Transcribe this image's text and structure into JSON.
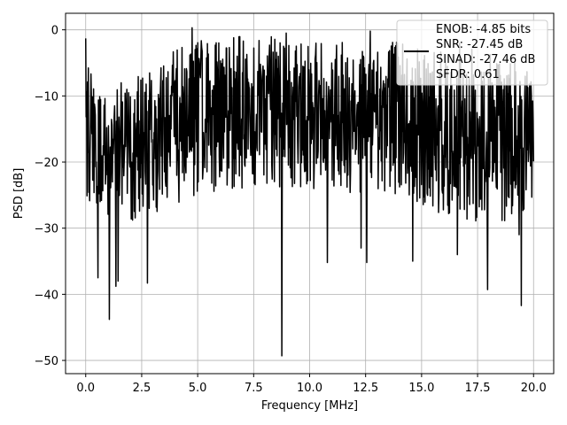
{
  "chart_data": {
    "type": "line",
    "title": "",
    "xlabel": "Frequency [MHz]",
    "ylabel": "PSD [dB]",
    "xlim": [
      -0.9,
      20.9
    ],
    "ylim": [
      -52,
      2.5
    ],
    "xticks": [
      0,
      2.5,
      5,
      7.5,
      10,
      12.5,
      15,
      17.5,
      20
    ],
    "xtick_labels": [
      "0.0",
      "2.5",
      "5.0",
      "7.5",
      "10.0",
      "12.5",
      "15.0",
      "17.5",
      "20.0"
    ],
    "yticks": [
      0,
      -10,
      -20,
      -30,
      -40,
      -50
    ],
    "ytick_labels": [
      "0",
      "−10",
      "−20",
      "−30",
      "−40",
      "−50"
    ],
    "grid": true,
    "legend_position": "top-right",
    "series_color": "#000000",
    "legend": {
      "lines": [
        "ENOB: -4.85 bits",
        "SNR: -27.45 dB",
        "SINAD: -27.46 dB",
        "SFDR: 0.61"
      ]
    },
    "series": [
      {
        "x_start": 0.0,
        "x_end": 20.0,
        "n_points": 1024,
        "envelope_upper": [
          [
            0.0,
            -1.5
          ],
          [
            0.3,
            -8
          ],
          [
            1.0,
            -9
          ],
          [
            2.0,
            -7
          ],
          [
            3.0,
            -5
          ],
          [
            4.0,
            -3
          ],
          [
            5.0,
            -1
          ],
          [
            7.0,
            -1
          ],
          [
            10.0,
            -1
          ],
          [
            13.0,
            -1
          ],
          [
            15.0,
            -1.5
          ],
          [
            17.0,
            -2
          ],
          [
            19.0,
            -4
          ],
          [
            20.0,
            -7
          ]
        ],
        "envelope_lower": [
          [
            0.0,
            -25
          ],
          [
            1.0,
            -30
          ],
          [
            2.0,
            -29
          ],
          [
            3.0,
            -28
          ],
          [
            5.0,
            -25
          ],
          [
            7.0,
            -24
          ],
          [
            10.0,
            -24
          ],
          [
            12.0,
            -25
          ],
          [
            14.0,
            -26
          ],
          [
            15.5,
            -28
          ],
          [
            17.5,
            -29
          ],
          [
            19.0,
            -29
          ],
          [
            20.0,
            -26
          ]
        ],
        "notable_dips": [
          [
            0.55,
            -37.5
          ],
          [
            1.05,
            -43.8
          ],
          [
            1.35,
            -38.8
          ],
          [
            1.45,
            -38
          ],
          [
            2.75,
            -38.3
          ],
          [
            8.75,
            -49.3
          ],
          [
            10.8,
            -35.2
          ],
          [
            12.3,
            -33
          ],
          [
            12.55,
            -35.2
          ],
          [
            14.6,
            -35
          ],
          [
            16.6,
            -34
          ],
          [
            17.95,
            -39.3
          ],
          [
            19.45,
            -41.7
          ],
          [
            19.35,
            -31
          ]
        ],
        "notable_peaks": [
          [
            0.0,
            -1.3
          ],
          [
            4.75,
            0.3
          ],
          [
            8.95,
            -0.5
          ],
          [
            12.7,
            -0.2
          ]
        ]
      }
    ]
  }
}
